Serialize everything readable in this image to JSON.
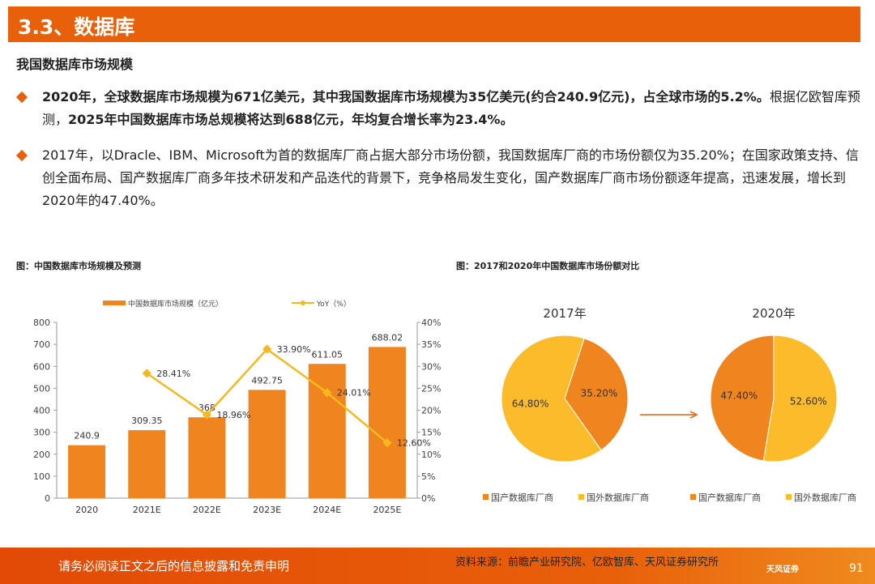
{
  "header": {
    "title": "3.3、数据库"
  },
  "subtitle": "我国数据库市场规模",
  "bullets": [
    {
      "bold": "2020年，全球数据库市场规模为671亿美元，其中我国数据库市场规模为35亿美元(约合240.9亿元)，占全球市场的5.2%。",
      "normal": "根据亿欧智库预测，",
      "bold2": "2025年中国数据库市场总规模将达到688亿元，年均复合增长率为23.4%。"
    },
    {
      "normal": "2017年，以Dracle、IBM、Microsoft为首的数据库厂商占据大部分市场份额，我国数据库厂商的市场份额仅为35.20%；在国家政策支持、信创全面布局、国产数据库厂商多年技术研发和产品迭代的背景下，竞争格局发生变化，国产数据库厂商市场份额逐年提高，迅速发展，增长到2020年的47.40%。"
    }
  ],
  "chart_data": [
    {
      "type": "bar",
      "title": "图：中国数据库市场规模及预测",
      "categories": [
        "2020",
        "2021E",
        "2022E",
        "2023E",
        "2024E",
        "2025E"
      ],
      "series": [
        {
          "name": "中国数据库市场规模（亿元）",
          "type": "bar",
          "values": [
            240.9,
            309.35,
            368,
            492.75,
            611.05,
            688.02
          ],
          "labels": [
            "240.9",
            "309.35",
            "368",
            "492.75",
            "611.05",
            "688.02"
          ],
          "color": "#f0841e"
        },
        {
          "name": "YoY（%）",
          "type": "line",
          "axis": "right",
          "values": [
            null,
            28.41,
            18.96,
            33.9,
            24.01,
            12.6
          ],
          "labels": [
            "",
            "28.41%",
            "18.96%",
            "33.90%",
            "24.01%",
            "12.60%"
          ],
          "color": "#f5b820"
        }
      ],
      "ylim": [
        0,
        800
      ],
      "yticks": [
        "0",
        "100",
        "200",
        "300",
        "400",
        "500",
        "600",
        "700",
        "800"
      ],
      "y2lim": [
        0,
        40
      ],
      "y2ticks": [
        "0%",
        "5%",
        "10%",
        "15%",
        "20%",
        "25%",
        "30%",
        "35%",
        "40%"
      ],
      "legend": "top"
    },
    {
      "type": "pie",
      "title": "图：2017和2020年中国数据库市场份额对比",
      "pies": [
        {
          "label": "2017年",
          "slices": [
            {
              "name": "国产数据库厂商",
              "value": 35.2,
              "label": "35.20%",
              "color": "#f0841e"
            },
            {
              "name": "国外数据库厂商",
              "value": 64.8,
              "label": "64.80%",
              "color": "#fbbb2a"
            }
          ]
        },
        {
          "label": "2020年",
          "slices": [
            {
              "name": "国产数据库厂商",
              "value": 47.4,
              "label": "47.40%",
              "color": "#f0841e"
            },
            {
              "name": "国外数据库厂商",
              "value": 52.6,
              "label": "52.60%",
              "color": "#fbbb2a"
            }
          ]
        }
      ],
      "legend": "bottom"
    }
  ],
  "footer": {
    "disclaimer": "请务必阅读正文之后的信息披露和免责申明",
    "source": "资料来源：前瞻产业研究院、亿欧智库、天风证券研究所",
    "logo": "天风证券",
    "page": "91"
  }
}
